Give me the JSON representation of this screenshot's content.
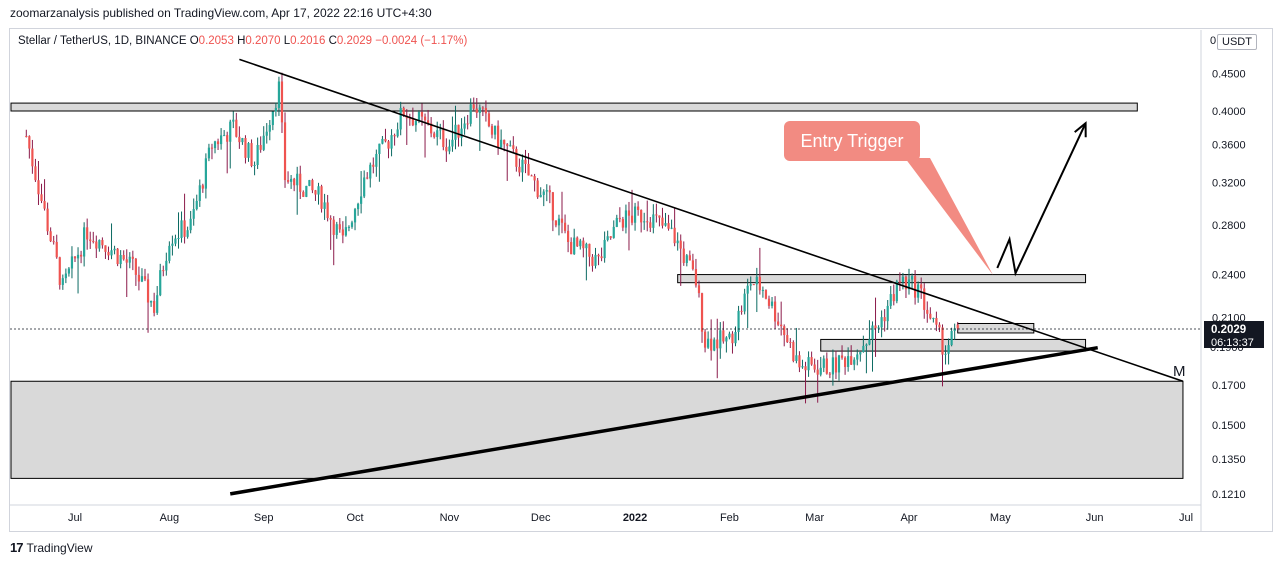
{
  "header": {
    "published_text": "zoomarzanalysis published on TradingView.com, Apr 17, 2022 22:16 UTC+4:30"
  },
  "symbol": {
    "name": "Stellar / TetherUS, 1D, BINANCE",
    "o_label": "O",
    "o_value": "0.2053",
    "h_label": "H",
    "h_value": "0.2070",
    "l_label": "L",
    "l_value": "0.2016",
    "c_label": "C",
    "c_value": "0.2029",
    "change": "−0.0024 (−1.17%)"
  },
  "price_axis": {
    "unit_label": "USDT",
    "unit_clip": "0",
    "current_price": "0.2029",
    "countdown": "06:13:37",
    "partial_label": "0.1900"
  },
  "annotations": {
    "entry_trigger": "Entry Trigger",
    "m_label": "M"
  },
  "footer": {
    "logo_mark": "17",
    "brand": "TradingView"
  },
  "colors": {
    "up": "#26a69a",
    "down": "#ef5350",
    "wick_up": "#0b6a62",
    "wick_down": "#8b1a4a",
    "callout_fill": "#f28b82",
    "callout_text": "#ffffff",
    "zone_fill": "#d9d9d9",
    "line": "#000000",
    "price_tag": "#131722"
  },
  "chart_data": {
    "type": "candlestick",
    "scale": "log",
    "y_ticks": [
      "0.4500",
      "0.4000",
      "0.3600",
      "0.3200",
      "0.2800",
      "0.2400",
      "0.2100",
      "0.1700",
      "0.1500",
      "0.1350",
      "0.1210"
    ],
    "x_ticks": [
      "Jul",
      "Aug",
      "Sep",
      "Oct",
      "Nov",
      "Dec",
      "2022",
      "Feb",
      "Mar",
      "Apr",
      "May",
      "Jun",
      "Jul"
    ],
    "ohlc_last": {
      "open": 0.2053,
      "high": 0.207,
      "low": 0.2016,
      "close": 0.2029,
      "change": -0.0024,
      "change_pct": -1.17
    },
    "close_path": [
      {
        "date": "2021-06-15",
        "close": 0.37
      },
      {
        "date": "2021-06-22",
        "close": 0.28
      },
      {
        "date": "2021-06-27",
        "close": 0.23
      },
      {
        "date": "2021-07-05",
        "close": 0.275
      },
      {
        "date": "2021-07-12",
        "close": 0.262
      },
      {
        "date": "2021-07-20",
        "close": 0.245
      },
      {
        "date": "2021-07-27",
        "close": 0.217
      },
      {
        "date": "2021-08-01",
        "close": 0.27
      },
      {
        "date": "2021-08-08",
        "close": 0.28
      },
      {
        "date": "2021-08-15",
        "close": 0.36
      },
      {
        "date": "2021-08-22",
        "close": 0.38
      },
      {
        "date": "2021-08-29",
        "close": 0.34
      },
      {
        "date": "2021-09-06",
        "close": 0.43
      },
      {
        "date": "2021-09-08",
        "close": 0.325
      },
      {
        "date": "2021-09-20",
        "close": 0.305
      },
      {
        "date": "2021-09-27",
        "close": 0.265
      },
      {
        "date": "2021-10-04",
        "close": 0.325
      },
      {
        "date": "2021-10-12",
        "close": 0.365
      },
      {
        "date": "2021-10-17",
        "close": 0.4
      },
      {
        "date": "2021-10-25",
        "close": 0.38
      },
      {
        "date": "2021-11-01",
        "close": 0.36
      },
      {
        "date": "2021-11-09",
        "close": 0.41
      },
      {
        "date": "2021-11-16",
        "close": 0.37
      },
      {
        "date": "2021-11-25",
        "close": 0.335
      },
      {
        "date": "2021-12-04",
        "close": 0.3
      },
      {
        "date": "2021-12-10",
        "close": 0.265
      },
      {
        "date": "2021-12-20",
        "close": 0.25
      },
      {
        "date": "2021-12-27",
        "close": 0.285
      },
      {
        "date": "2022-01-05",
        "close": 0.29
      },
      {
        "date": "2022-01-14",
        "close": 0.27
      },
      {
        "date": "2022-01-21",
        "close": 0.235
      },
      {
        "date": "2022-01-24",
        "close": 0.195
      },
      {
        "date": "2022-02-01",
        "close": 0.195
      },
      {
        "date": "2022-02-08",
        "close": 0.235
      },
      {
        "date": "2022-02-12",
        "close": 0.23
      },
      {
        "date": "2022-02-18",
        "close": 0.205
      },
      {
        "date": "2022-02-24",
        "close": 0.18
      },
      {
        "date": "2022-03-07",
        "close": 0.18
      },
      {
        "date": "2022-03-15",
        "close": 0.19
      },
      {
        "date": "2022-03-22",
        "close": 0.205
      },
      {
        "date": "2022-03-29",
        "close": 0.235
      },
      {
        "date": "2022-04-04",
        "close": 0.23
      },
      {
        "date": "2022-04-10",
        "close": 0.2
      },
      {
        "date": "2022-04-13",
        "close": 0.19
      },
      {
        "date": "2022-04-17",
        "close": 0.2029
      }
    ],
    "zones": [
      {
        "name": "",
        "from": "2021-06-01",
        "to": "2022-06-15",
        "low": 0.4,
        "high": 0.41
      },
      {
        "name": "",
        "from": "2022-01-15",
        "to": "2022-05-29",
        "low": 0.234,
        "high": 0.24
      },
      {
        "name": "",
        "from": "2022-04-17",
        "to": "2022-05-12",
        "low": 0.2,
        "high": 0.206
      },
      {
        "name": "",
        "from": "2022-03-03",
        "to": "2022-05-29",
        "low": 0.189,
        "high": 0.196
      },
      {
        "name": "",
        "from": "2021-06-01",
        "to": "2022-06-30",
        "low": 0.127,
        "high": 0.172
      }
    ],
    "trendlines": [
      {
        "from": {
          "date": "2021-08-24",
          "price": 0.47
        },
        "to": {
          "date": "2022-06-30",
          "price": 0.172
        }
      },
      {
        "from": {
          "date": "2021-08-21",
          "price": 0.121
        },
        "to": {
          "date": "2022-06-02",
          "price": 0.191
        }
      }
    ],
    "projection_path": [
      {
        "date": "2022-04-30",
        "price": 0.245
      },
      {
        "date": "2022-05-04",
        "price": 0.268
      },
      {
        "date": "2022-05-06",
        "price": 0.241
      },
      {
        "date": "2022-05-29",
        "price": 0.385
      }
    ]
  }
}
